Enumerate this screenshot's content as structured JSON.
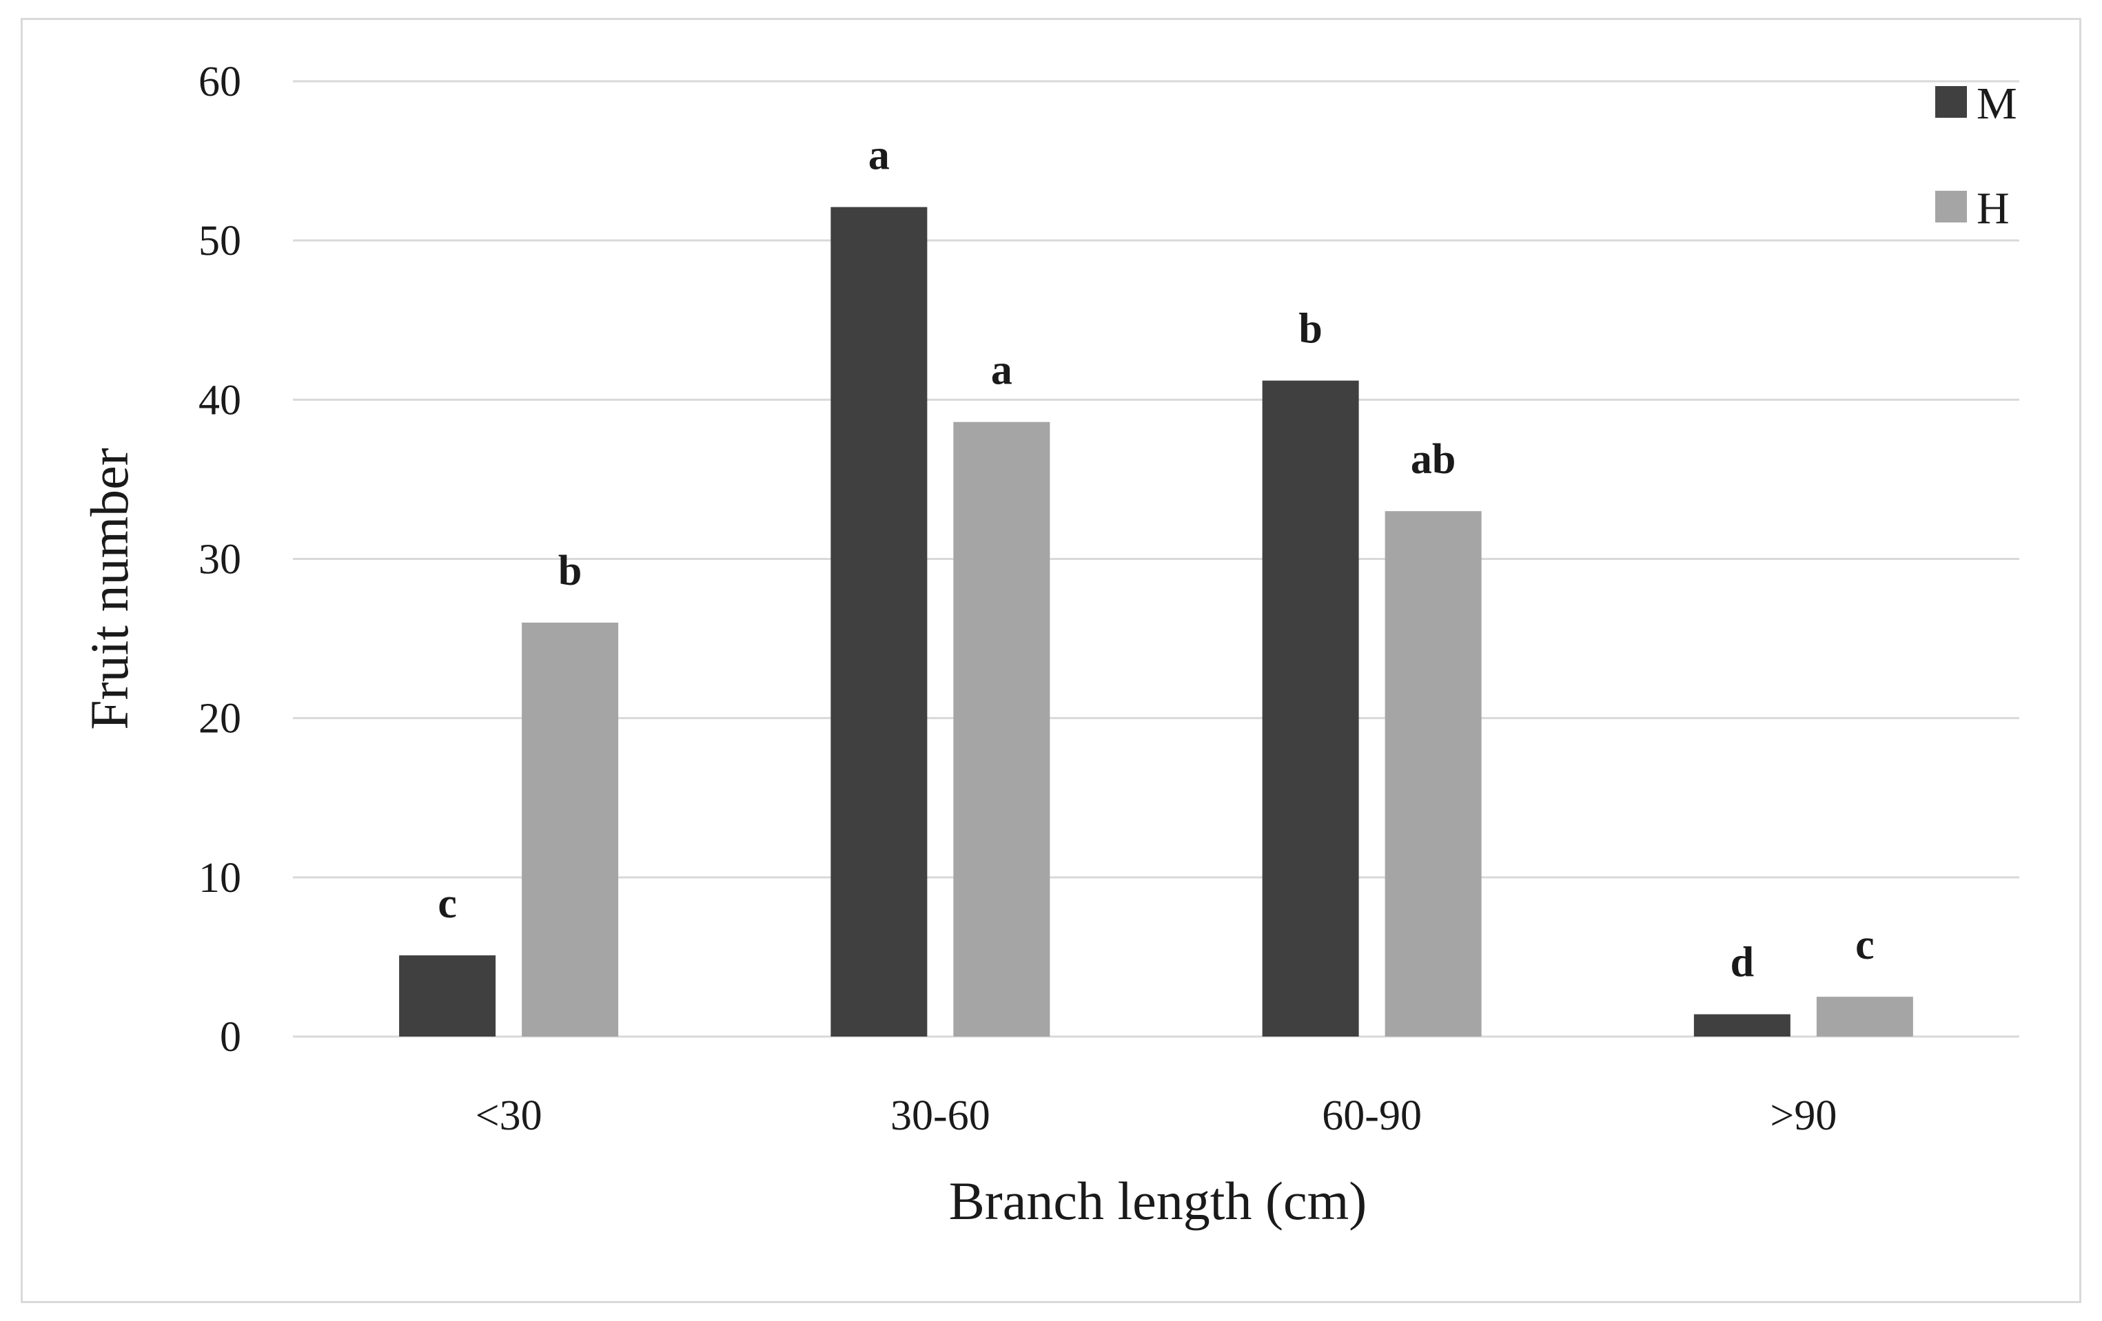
{
  "chart_data": {
    "type": "bar",
    "title": "",
    "xlabel": "Branch length (cm)",
    "ylabel": "Fruit number",
    "categories": [
      "<30",
      "30-60",
      "60-90",
      ">90"
    ],
    "ylim": [
      0,
      60
    ],
    "yticks": [
      0,
      10,
      20,
      30,
      40,
      50,
      60
    ],
    "grid": true,
    "legend_position": "top-right",
    "series": [
      {
        "name": "M",
        "color": "#404040",
        "values": [
          5.1,
          52.1,
          41.2,
          1.4
        ],
        "labels": [
          "c",
          "a",
          "b",
          "d"
        ]
      },
      {
        "name": "H",
        "color": "#a5a5a5",
        "values": [
          26.0,
          38.6,
          33.0,
          2.5
        ],
        "labels": [
          "b",
          "a",
          "ab",
          "c"
        ]
      }
    ]
  }
}
